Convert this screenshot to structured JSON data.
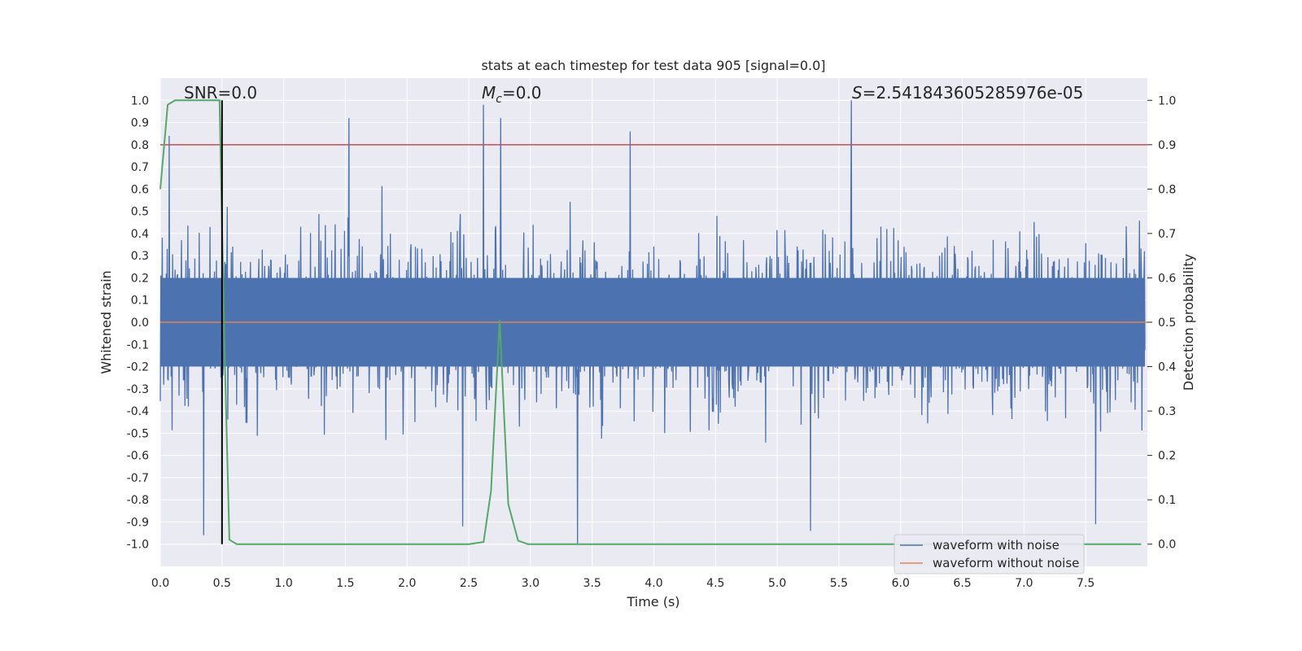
{
  "chart_data": {
    "type": "line",
    "title": "stats at each timestep for test data 905 [signal=0.0]",
    "xlabel": "Time (s)",
    "ylabel": "Whitened strain",
    "y2label": "Detection probability",
    "xlim": [
      0.0,
      8.0
    ],
    "ylim": [
      -1.1,
      1.1
    ],
    "y2lim": [
      -0.05,
      1.05
    ],
    "x_ticks": [
      "0.0",
      "0.5",
      "1.0",
      "1.5",
      "2.0",
      "2.5",
      "3.0",
      "3.5",
      "4.0",
      "4.5",
      "5.0",
      "5.5",
      "6.0",
      "6.5",
      "7.0",
      "7.5"
    ],
    "y_ticks": [
      "1.0",
      "0.9",
      "0.8",
      "0.7",
      "0.6",
      "0.5",
      "0.4",
      "0.3",
      "0.2",
      "0.1",
      "0.0",
      "-0.1",
      "-0.2",
      "-0.3",
      "-0.4",
      "-0.5",
      "-0.6",
      "-0.7",
      "-0.8",
      "-0.9",
      "-1.0"
    ],
    "y2_ticks": [
      "1.0",
      "0.9",
      "0.8",
      "0.7",
      "0.6",
      "0.5",
      "0.4",
      "0.3",
      "0.2",
      "0.1",
      "0.0"
    ],
    "annotations": {
      "snr": "SNR=0.0",
      "mc_symbol": "M",
      "mc_sub": "c",
      "mc_value": "=0.0",
      "s_symbol": "S",
      "s_value": "=2.541843605285976e-05"
    },
    "threshold": {
      "value": 0.8,
      "color": "#c44e52"
    },
    "marker_line": {
      "x": 0.5,
      "color": "#000000"
    },
    "series": [
      {
        "name": "waveform with noise",
        "color": "#4c72b0",
        "description_values": "dense noise, approx. amplitude range -1.0 to 1.0",
        "peaks": [
          {
            "x": 0.07,
            "y": 0.84
          },
          {
            "x": 1.53,
            "y": 0.92
          },
          {
            "x": 2.62,
            "y": 0.98
          },
          {
            "x": 2.76,
            "y": 0.92
          },
          {
            "x": 3.81,
            "y": 0.86
          },
          {
            "x": 5.6,
            "y": 1.0
          },
          {
            "x": 0.35,
            "y": -0.96
          },
          {
            "x": 2.45,
            "y": -0.92
          },
          {
            "x": 3.38,
            "y": -1.0
          },
          {
            "x": 5.27,
            "y": -0.94
          },
          {
            "x": 7.58,
            "y": -0.91
          }
        ]
      },
      {
        "name": "waveform without noise",
        "color": "#dd8452",
        "x": [
          0.0,
          8.0
        ],
        "y": [
          0.0,
          0.0
        ]
      },
      {
        "name": "detection probability",
        "color": "#55a868",
        "axis": "right",
        "x": [
          0.0,
          0.06,
          0.12,
          0.2,
          0.3,
          0.4,
          0.48,
          0.52,
          0.56,
          0.62,
          1.0,
          2.0,
          2.5,
          2.62,
          2.68,
          2.75,
          2.82,
          2.9,
          2.98,
          3.1,
          4.0,
          5.0,
          6.0,
          7.0,
          7.95
        ],
        "y": [
          0.8,
          0.99,
          1.0,
          1.0,
          1.0,
          1.0,
          1.0,
          0.45,
          0.01,
          0.0,
          0.0,
          0.0,
          0.0,
          0.005,
          0.12,
          0.505,
          0.09,
          0.008,
          0.0,
          0.0,
          0.0,
          0.0,
          0.0,
          0.0,
          0.0
        ]
      }
    ],
    "legend": {
      "entries": [
        "waveform with noise",
        "waveform without noise"
      ],
      "placement": "lower-right"
    }
  }
}
